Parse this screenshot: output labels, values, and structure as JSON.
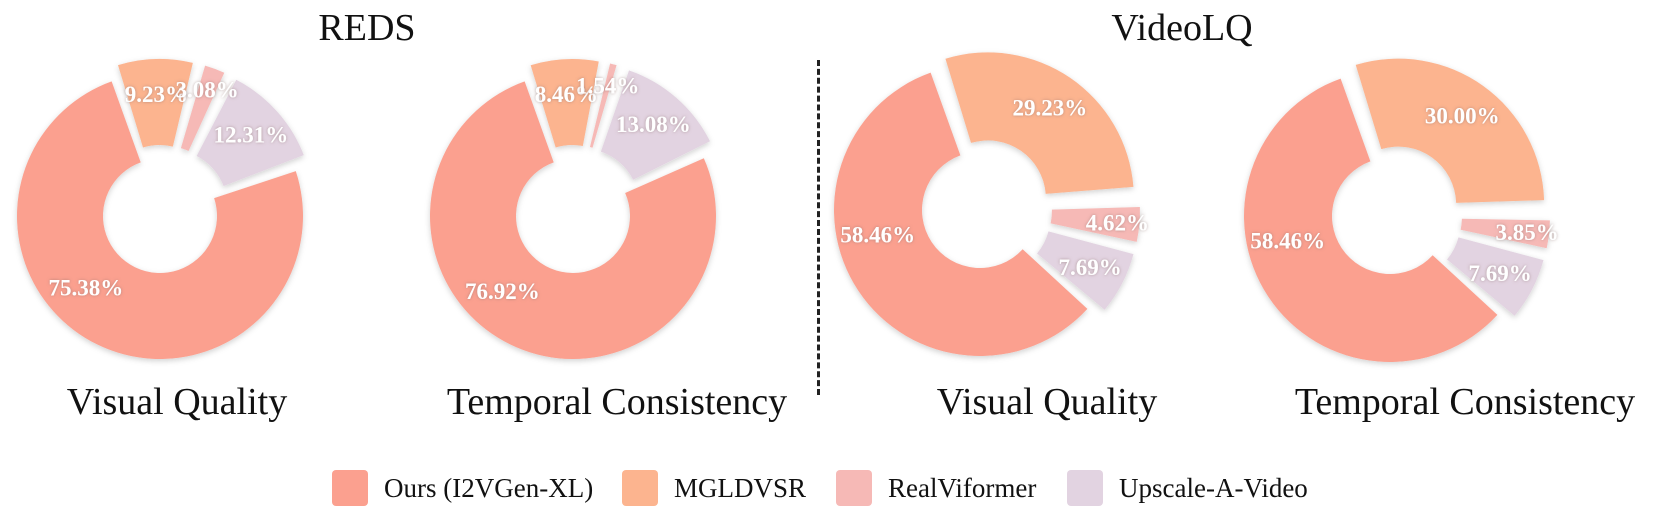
{
  "groups": {
    "reds": "REDS",
    "videolq": "VideoLQ"
  },
  "colors": {
    "Ours (I2VGen-XL)": "#fba08f",
    "MGLDVSR": "#fcb48f",
    "RealViformer": "#f6b9b6",
    "Upscale-A-Video": "#e2d3e1"
  },
  "legend": [
    "Ours (I2VGen-XL)",
    "MGLDVSR",
    "RealViformer",
    "Upscale-A-Video"
  ],
  "chart_data": [
    {
      "type": "pie",
      "group": "REDS",
      "title": "Visual Quality",
      "labels": [
        "Ours (I2VGen-XL)",
        "MGLDVSR",
        "RealViformer",
        "Upscale-A-Video"
      ],
      "values": [
        75.38,
        9.23,
        3.08,
        12.31
      ],
      "value_labels": [
        "75.38%",
        "9.23%",
        "3.08%",
        "12.31%"
      ]
    },
    {
      "type": "pie",
      "group": "REDS",
      "title": "Temporal Consistency",
      "labels": [
        "Ours (I2VGen-XL)",
        "MGLDVSR",
        "RealViformer",
        "Upscale-A-Video"
      ],
      "values": [
        76.92,
        8.46,
        1.54,
        13.08
      ],
      "value_labels": [
        "76.92%",
        "8.46%",
        "1.54%",
        "13.08%"
      ]
    },
    {
      "type": "pie",
      "group": "VideoLQ",
      "title": "Visual Quality",
      "labels": [
        "Ours (I2VGen-XL)",
        "MGLDVSR",
        "RealViformer",
        "Upscale-A-Video"
      ],
      "values": [
        58.46,
        29.23,
        4.62,
        7.69
      ],
      "value_labels": [
        "58.46%",
        "29.23%",
        "4.62%",
        "7.69%"
      ]
    },
    {
      "type": "pie",
      "group": "VideoLQ",
      "title": "Temporal Consistency",
      "labels": [
        "Ours (I2VGen-XL)",
        "MGLDVSR",
        "RealViformer",
        "Upscale-A-Video"
      ],
      "values": [
        58.46,
        30.0,
        3.85,
        7.69
      ],
      "value_labels": [
        "58.46%",
        "30.00%",
        "3.85%",
        "7.69%"
      ]
    }
  ]
}
